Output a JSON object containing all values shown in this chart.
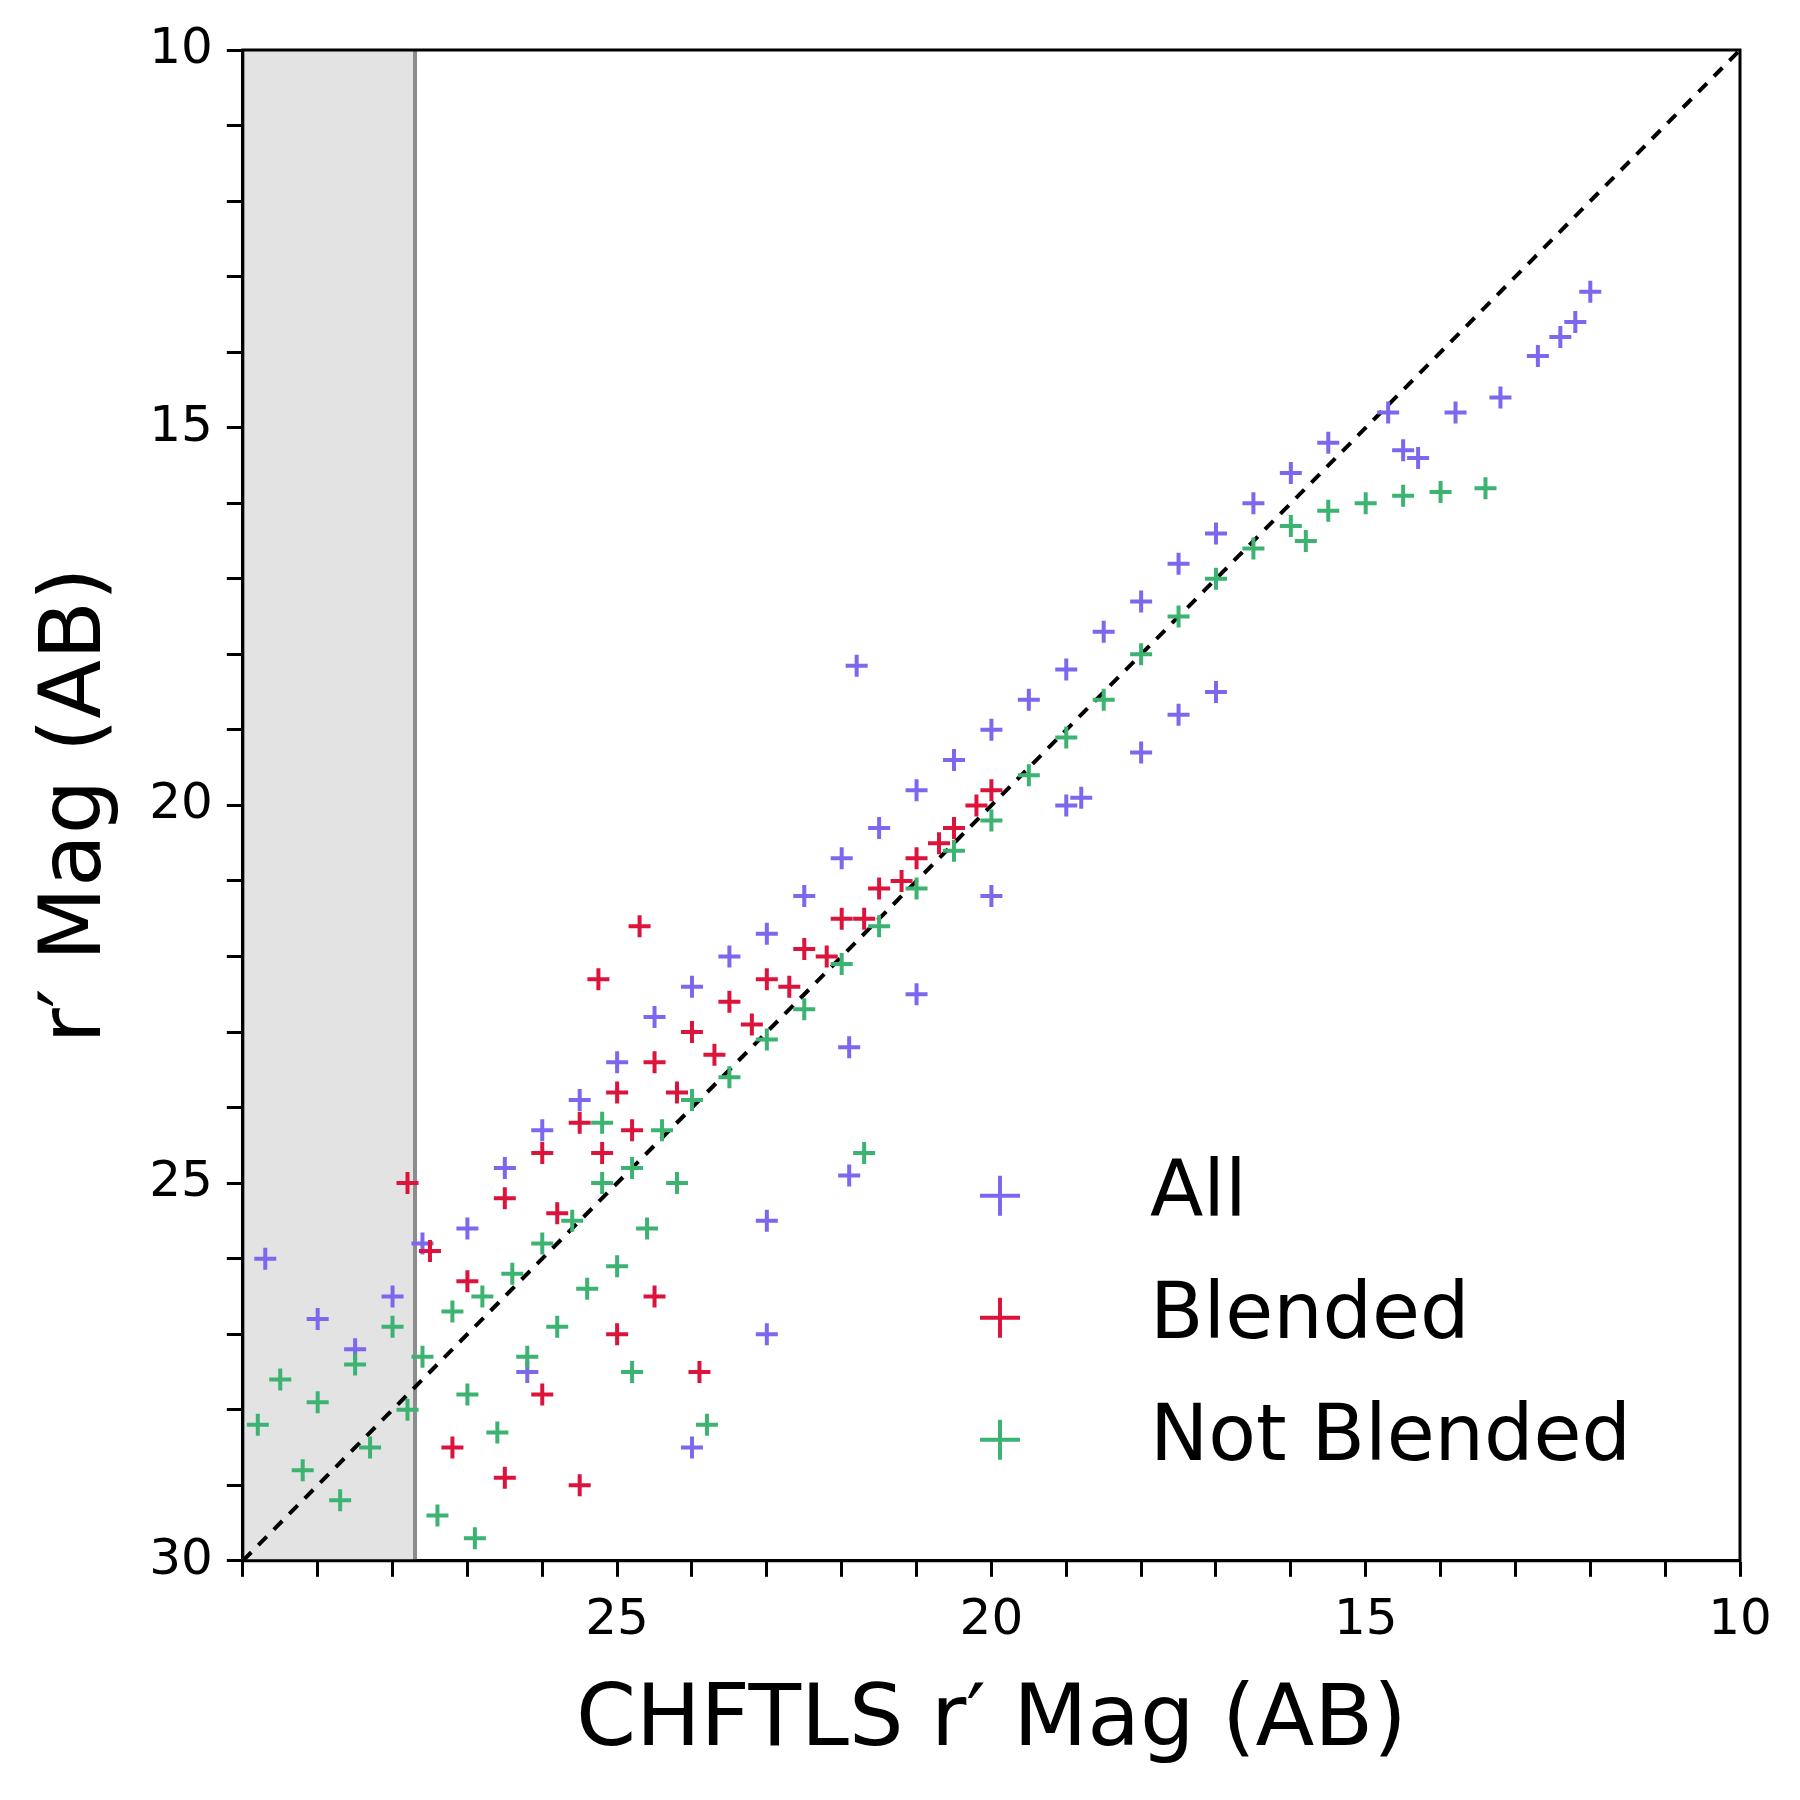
{
  "chart_data": {
    "type": "scatter",
    "xlabel": "CHFTLS r′ Mag (AB)",
    "ylabel": "r′ Mag (AB)",
    "xlim": [
      30,
      10
    ],
    "ylim": [
      30,
      10
    ],
    "xticks": [
      {
        "value": 30,
        "label": null
      },
      {
        "value": 29,
        "label": null
      },
      {
        "value": 28,
        "label": null
      },
      {
        "value": 27,
        "label": null
      },
      {
        "value": 26,
        "label": null
      },
      25,
      {
        "value": 24,
        "label": null
      },
      {
        "value": 23,
        "label": null
      },
      {
        "value": 22,
        "label": null
      },
      {
        "value": 21,
        "label": null
      },
      20,
      {
        "value": 19,
        "label": null
      },
      {
        "value": 18,
        "label": null
      },
      {
        "value": 17,
        "label": null
      },
      {
        "value": 16,
        "label": null
      },
      15,
      {
        "value": 14,
        "label": null
      },
      {
        "value": 13,
        "label": null
      },
      {
        "value": 12,
        "label": null
      },
      {
        "value": 11,
        "label": null
      },
      10
    ],
    "yticks": [
      30,
      {
        "value": 29,
        "label": null
      },
      {
        "value": 28,
        "label": null
      },
      {
        "value": 27,
        "label": null
      },
      {
        "value": 26,
        "label": null
      },
      25,
      {
        "value": 24,
        "label": null
      },
      {
        "value": 23,
        "label": null
      },
      {
        "value": 22,
        "label": null
      },
      {
        "value": 21,
        "label": null
      },
      20,
      {
        "value": 19,
        "label": null
      },
      {
        "value": 18,
        "label": null
      },
      {
        "value": 17,
        "label": null
      },
      {
        "value": 16,
        "label": null
      },
      15,
      {
        "value": 14,
        "label": null
      },
      {
        "value": 13,
        "label": null
      },
      {
        "value": 12,
        "label": null
      },
      {
        "value": 11,
        "label": null
      },
      10
    ],
    "grid": false,
    "legend": "bottom right",
    "marker": "cross",
    "bands": [
      {
        "axis": "x",
        "from": 30,
        "to": 27.7,
        "color": "#e3e3e3"
      }
    ],
    "ref_lines": [
      {
        "axis": "x",
        "value": 27.7,
        "color": "#8c8c8c"
      }
    ],
    "series": [
      {
        "name": "All",
        "color": "#7b68ee",
        "x": [
          29.7,
          29.0,
          28.5,
          28.0,
          27.6,
          27.0,
          26.5,
          26.0,
          25.5,
          25.0,
          24.5,
          24.0,
          23.5,
          23.0,
          22.5,
          22.0,
          21.5,
          21.0,
          20.5,
          20.0,
          19.5,
          19.0,
          18.5,
          18.0,
          17.5,
          17.0,
          16.5,
          16.0,
          15.5,
          23.0,
          21.9,
          21.0,
          20.0,
          19.0,
          18.0,
          17.5,
          17.0,
          18.8,
          21.8,
          14.7,
          14.3,
          13.8,
          13.2,
          12.7,
          12.4,
          12.0,
          12.2,
          14.5,
          21.9,
          24.0,
          23.0,
          26.2
        ],
        "values": [
          26.0,
          26.8,
          27.2,
          26.5,
          25.8,
          25.6,
          24.8,
          24.3,
          23.9,
          23.4,
          22.8,
          22.4,
          22.0,
          21.7,
          21.2,
          20.7,
          20.3,
          19.8,
          19.4,
          19.0,
          18.6,
          18.2,
          17.7,
          17.3,
          16.8,
          16.4,
          16.0,
          15.6,
          15.2,
          25.5,
          23.2,
          22.5,
          21.2,
          20.0,
          19.3,
          18.8,
          18.5,
          19.9,
          18.15,
          14.8,
          15.4,
          14.8,
          14.6,
          14.05,
          13.8,
          13.2,
          13.6,
          15.3,
          24.9,
          28.5,
          27.0,
          27.5
        ]
      },
      {
        "name": "Blended",
        "color": "#dc143c",
        "x": [
          27.5,
          27.0,
          26.5,
          26.0,
          25.8,
          25.5,
          25.2,
          25.0,
          24.8,
          24.5,
          24.2,
          24.0,
          23.7,
          23.5,
          23.2,
          23.0,
          22.7,
          22.5,
          22.2,
          22.0,
          21.7,
          21.5,
          21.2,
          21.0,
          20.7,
          20.5,
          20.2,
          20.0,
          24.7,
          25.25,
          27.8,
          26.0,
          23.9,
          25.5,
          27.2,
          26.5,
          24.5,
          25.0
        ],
        "values": [
          25.9,
          26.3,
          25.2,
          24.6,
          25.4,
          24.2,
          24.6,
          23.8,
          24.3,
          23.4,
          23.8,
          23.0,
          23.3,
          22.6,
          22.9,
          22.3,
          22.4,
          21.9,
          22.0,
          21.5,
          21.5,
          21.1,
          21.0,
          20.7,
          20.5,
          20.3,
          20.0,
          19.8,
          21.6,
          22.3,
          25.0,
          27.8,
          27.5,
          29.0,
          28.5,
          28.9,
          26.5,
          27.0
        ]
      },
      {
        "name": "Not Blended",
        "color": "#3cb371",
        "x": [
          29.8,
          29.5,
          29.2,
          29.0,
          28.7,
          28.5,
          28.3,
          28.0,
          27.8,
          27.6,
          27.4,
          27.2,
          27.0,
          26.8,
          26.6,
          26.4,
          26.2,
          26.0,
          25.8,
          25.6,
          25.4,
          25.2,
          25.0,
          24.8,
          24.6,
          24.4,
          24.2,
          24.0,
          23.5,
          23.0,
          22.5,
          22.0,
          21.5,
          21.0,
          20.5,
          20.0,
          19.5,
          19.0,
          18.5,
          18.0,
          17.5,
          17.0,
          16.5,
          16.0,
          15.5,
          15.0,
          14.5,
          14.0,
          13.4,
          15.8,
          24.8,
          23.8,
          26.9,
          25.2,
          21.7
        ],
        "values": [
          28.2,
          27.6,
          28.8,
          27.9,
          29.2,
          27.4,
          28.5,
          26.9,
          28.0,
          27.3,
          29.4,
          26.7,
          27.8,
          26.5,
          28.3,
          26.2,
          27.3,
          25.8,
          26.9,
          25.5,
          26.4,
          25.0,
          26.1,
          24.8,
          25.6,
          24.3,
          25.0,
          23.9,
          23.6,
          23.1,
          22.7,
          22.1,
          21.6,
          21.1,
          20.6,
          20.2,
          19.6,
          19.1,
          18.6,
          18.0,
          17.5,
          17.0,
          16.6,
          16.3,
          16.1,
          16.0,
          15.9,
          15.85,
          15.8,
          16.5,
          27.5,
          28.2,
          29.7,
          24.2,
          24.6
        ]
      },
      {
        "type": "line",
        "color": "#000000",
        "line_style": "dashed",
        "marker": "none",
        "x": [
          30,
          10
        ],
        "values": [
          30,
          10
        ]
      }
    ]
  }
}
